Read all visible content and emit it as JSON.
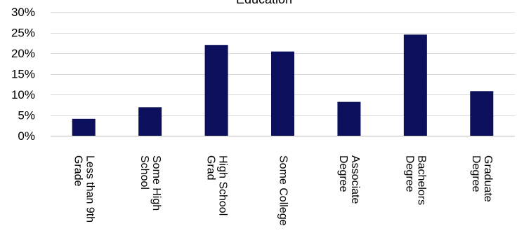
{
  "chart_data": {
    "type": "bar",
    "title": "Education",
    "xlabel": "",
    "ylabel": "",
    "categories": [
      [
        "Less than 9th",
        "Grade"
      ],
      [
        "Some High",
        "School"
      ],
      [
        "High School",
        "Grad"
      ],
      [
        "Some College"
      ],
      [
        "Associate",
        "Degree"
      ],
      [
        "Bachelors",
        "Degree"
      ],
      [
        "Graduate",
        "Degree"
      ]
    ],
    "values": [
      0.041,
      0.069,
      0.22,
      0.204,
      0.082,
      0.245,
      0.108
    ],
    "ylim": [
      0,
      0.3
    ],
    "yticks": [
      0,
      0.05,
      0.1,
      0.15,
      0.2,
      0.25,
      0.3
    ],
    "ytick_labels": [
      "0%",
      "5%",
      "10%",
      "15%",
      "20%",
      "25%",
      "30%"
    ],
    "grid": true,
    "legend": "none",
    "colors": {
      "bar": "#0b0f5c",
      "grid": "#d9d9d9",
      "axis": "#bfbfbf",
      "text": "#000000"
    }
  }
}
